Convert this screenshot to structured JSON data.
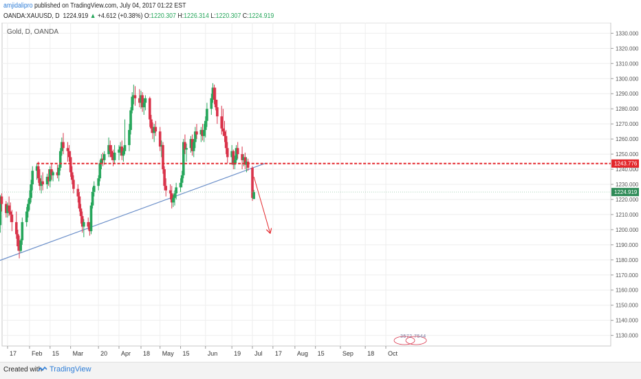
{
  "header": {
    "author": "amjidalipro",
    "published": "published on TradingView.com, July 04, 2017 01:22 EST",
    "symbol": "OANDA:XAUUSD, D",
    "last": "1224.919",
    "arrow": "▲",
    "change": "+4.612 (+0.38%)",
    "o_label": "O:",
    "o_value": "1220.307",
    "h_label": "H:",
    "h_value": "1226.314",
    "l_label": "L:",
    "l_value": "1220.307",
    "c_label": "C:",
    "c_value": "1224.919"
  },
  "footer": {
    "created": "Created with",
    "brand": "TradingView"
  },
  "colors": {
    "up": "#26a65b",
    "down": "#d9334a",
    "trendline": "#6b8fc9",
    "resistance": "#e3262b",
    "price_tag": "#2e8b57"
  },
  "chart_data": {
    "type": "candlestick",
    "title": "Gold, D, OANDA",
    "y_axis": {
      "range": [
        1123,
        1337
      ],
      "ticks": [
        "1130.000",
        "1140.000",
        "1150.000",
        "1160.000",
        "1170.000",
        "1180.000",
        "1190.000",
        "1200.000",
        "1210.000",
        "1220.000",
        "1230.000",
        "1240.000",
        "1250.000",
        "1260.000",
        "1270.000",
        "1280.000",
        "1290.000",
        "1300.000",
        "1310.000",
        "1320.000",
        "1330.000"
      ]
    },
    "x_axis": {
      "ticks": [
        {
          "label": "17",
          "date": "2017-01-17"
        },
        {
          "label": "Feb",
          "date": "2017-02-01"
        },
        {
          "label": "15",
          "date": "2017-02-15"
        },
        {
          "label": "Mar",
          "date": "2017-03-01"
        },
        {
          "label": "20",
          "date": "2017-03-20"
        },
        {
          "label": "Apr",
          "date": "2017-04-03"
        },
        {
          "label": "18",
          "date": "2017-04-18"
        },
        {
          "label": "May",
          "date": "2017-05-01"
        },
        {
          "label": "15",
          "date": "2017-05-15"
        },
        {
          "label": "Jun",
          "date": "2017-06-01"
        },
        {
          "label": "19",
          "date": "2017-06-19"
        },
        {
          "label": "Jul",
          "date": "2017-07-03"
        },
        {
          "label": "17",
          "date": "2017-07-17"
        },
        {
          "label": "Aug",
          "date": "2017-08-01"
        },
        {
          "label": "15",
          "date": "2017-08-15"
        },
        {
          "label": "Sep",
          "date": "2017-09-01"
        },
        {
          "label": "18",
          "date": "2017-09-18"
        },
        {
          "label": "Oct",
          "date": "2017-10-02"
        }
      ]
    },
    "grid": true,
    "price_labels": [
      {
        "value": 1243.776,
        "text": "1243.776"
      },
      {
        "value": 1224.919,
        "text": "1224.919"
      }
    ],
    "watermark": "3572 7544",
    "resistance_level": 1243.776,
    "trendline": {
      "start_date": "2017-01-10",
      "start_value": 1179,
      "end_date": "2017-07-12",
      "end_value": 1244
    },
    "projection_arrow": {
      "start_date": "2017-07-04",
      "start_value": 1235,
      "end_date": "2017-07-15",
      "end_value": 1198
    },
    "candles": [
      [
        "2017-01-10",
        1201,
        1210,
        1200,
        1209
      ],
      [
        "2017-01-11",
        1209,
        1220,
        1197,
        1203
      ],
      [
        "2017-01-12",
        1203,
        1223,
        1198,
        1222
      ],
      [
        "2017-01-13",
        1222,
        1224,
        1212,
        1217
      ],
      [
        "2017-01-16",
        1217,
        1219,
        1208,
        1211
      ],
      [
        "2017-01-17",
        1211,
        1218,
        1208,
        1216
      ],
      [
        "2017-01-18",
        1216,
        1222,
        1209,
        1212
      ],
      [
        "2017-01-19",
        1212,
        1218,
        1205,
        1210
      ],
      [
        "2017-01-20",
        1210,
        1213,
        1199,
        1205
      ],
      [
        "2017-01-23",
        1205,
        1212,
        1194,
        1197
      ],
      [
        "2017-01-24",
        1197,
        1200,
        1186,
        1189
      ],
      [
        "2017-01-25",
        1189,
        1196,
        1181,
        1186
      ],
      [
        "2017-01-26",
        1186,
        1194,
        1185,
        1193
      ],
      [
        "2017-01-27",
        1193,
        1208,
        1190,
        1205
      ],
      [
        "2017-01-30",
        1205,
        1215,
        1202,
        1212
      ],
      [
        "2017-01-31",
        1212,
        1220,
        1208,
        1217
      ],
      [
        "2017-02-01",
        1217,
        1226,
        1213,
        1221
      ],
      [
        "2017-02-02",
        1221,
        1233,
        1218,
        1230
      ],
      [
        "2017-02-03",
        1230,
        1242,
        1226,
        1239
      ],
      [
        "2017-02-06",
        1239,
        1244,
        1233,
        1242
      ],
      [
        "2017-02-07",
        1242,
        1245,
        1231,
        1234
      ],
      [
        "2017-02-08",
        1234,
        1240,
        1226,
        1229
      ],
      [
        "2017-02-09",
        1229,
        1236,
        1224,
        1232
      ],
      [
        "2017-02-10",
        1232,
        1238,
        1226,
        1230
      ],
      [
        "2017-02-13",
        1230,
        1237,
        1227,
        1235
      ],
      [
        "2017-02-14",
        1235,
        1240,
        1229,
        1232
      ],
      [
        "2017-02-15",
        1232,
        1242,
        1228,
        1240
      ],
      [
        "2017-02-16",
        1240,
        1244,
        1233,
        1236
      ],
      [
        "2017-02-17",
        1236,
        1239,
        1232,
        1238
      ],
      [
        "2017-02-20",
        1238,
        1243,
        1234,
        1236
      ],
      [
        "2017-02-21",
        1236,
        1243,
        1232,
        1241
      ],
      [
        "2017-02-22",
        1241,
        1254,
        1239,
        1252
      ],
      [
        "2017-02-23",
        1252,
        1261,
        1249,
        1258
      ],
      [
        "2017-02-24",
        1258,
        1264,
        1250,
        1254
      ],
      [
        "2017-02-27",
        1254,
        1258,
        1245,
        1252
      ],
      [
        "2017-02-28",
        1252,
        1256,
        1245,
        1248
      ],
      [
        "2017-03-01",
        1248,
        1252,
        1235,
        1238
      ],
      [
        "2017-03-02",
        1238,
        1242,
        1230,
        1233
      ],
      [
        "2017-03-03",
        1233,
        1236,
        1224,
        1227
      ],
      [
        "2017-03-06",
        1227,
        1230,
        1218,
        1222
      ],
      [
        "2017-03-07",
        1222,
        1225,
        1212,
        1214
      ],
      [
        "2017-03-08",
        1214,
        1217,
        1204,
        1209
      ],
      [
        "2017-03-09",
        1209,
        1212,
        1198,
        1202
      ],
      [
        "2017-03-10",
        1202,
        1207,
        1195,
        1205
      ],
      [
        "2017-03-13",
        1205,
        1208,
        1200,
        1202
      ],
      [
        "2017-03-14",
        1202,
        1205,
        1196,
        1199
      ],
      [
        "2017-03-15",
        1199,
        1218,
        1197,
        1216
      ],
      [
        "2017-03-16",
        1216,
        1228,
        1214,
        1225
      ],
      [
        "2017-03-17",
        1225,
        1232,
        1222,
        1229
      ],
      [
        "2017-03-20",
        1229,
        1236,
        1226,
        1234
      ],
      [
        "2017-03-21",
        1234,
        1246,
        1232,
        1244
      ],
      [
        "2017-03-22",
        1244,
        1250,
        1240,
        1247
      ],
      [
        "2017-03-23",
        1247,
        1251,
        1242,
        1246
      ],
      [
        "2017-03-24",
        1246,
        1252,
        1243,
        1250
      ],
      [
        "2017-03-27",
        1250,
        1261,
        1248,
        1256
      ],
      [
        "2017-03-28",
        1256,
        1259,
        1248,
        1252
      ],
      [
        "2017-03-29",
        1252,
        1256,
        1246,
        1248
      ],
      [
        "2017-03-30",
        1248,
        1253,
        1242,
        1246
      ],
      [
        "2017-03-31",
        1246,
        1256,
        1244,
        1251
      ],
      [
        "2017-04-03",
        1251,
        1256,
        1246,
        1253
      ],
      [
        "2017-04-04",
        1253,
        1258,
        1249,
        1255
      ],
      [
        "2017-04-05",
        1255,
        1259,
        1246,
        1249
      ],
      [
        "2017-04-06",
        1249,
        1254,
        1245,
        1252
      ],
      [
        "2017-04-07",
        1252,
        1273,
        1250,
        1256
      ],
      [
        "2017-04-10",
        1256,
        1270,
        1252,
        1266
      ],
      [
        "2017-04-11",
        1266,
        1281,
        1263,
        1279
      ],
      [
        "2017-04-12",
        1279,
        1291,
        1277,
        1288
      ],
      [
        "2017-04-13",
        1288,
        1296,
        1283,
        1289
      ],
      [
        "2017-04-14",
        1289,
        1295,
        1282,
        1287
      ],
      [
        "2017-04-17",
        1287,
        1293,
        1281,
        1284
      ],
      [
        "2017-04-18",
        1284,
        1292,
        1280,
        1289
      ],
      [
        "2017-04-19",
        1289,
        1291,
        1278,
        1281
      ],
      [
        "2017-04-20",
        1281,
        1287,
        1276,
        1284
      ],
      [
        "2017-04-21",
        1284,
        1289,
        1279,
        1287
      ],
      [
        "2017-04-24",
        1287,
        1288,
        1268,
        1273
      ],
      [
        "2017-04-25",
        1273,
        1276,
        1264,
        1267
      ],
      [
        "2017-04-26",
        1267,
        1271,
        1260,
        1264
      ],
      [
        "2017-04-27",
        1264,
        1270,
        1258,
        1268
      ],
      [
        "2017-04-28",
        1268,
        1272,
        1262,
        1265
      ],
      [
        "2017-05-01",
        1265,
        1268,
        1252,
        1255
      ],
      [
        "2017-05-02",
        1255,
        1259,
        1248,
        1256
      ],
      [
        "2017-05-03",
        1256,
        1258,
        1237,
        1240
      ],
      [
        "2017-05-04",
        1240,
        1242,
        1226,
        1229
      ],
      [
        "2017-05-05",
        1229,
        1234,
        1222,
        1226
      ],
      [
        "2017-05-08",
        1226,
        1230,
        1220,
        1224
      ],
      [
        "2017-05-09",
        1224,
        1229,
        1214,
        1218
      ],
      [
        "2017-05-10",
        1218,
        1223,
        1215,
        1221
      ],
      [
        "2017-05-11",
        1221,
        1226,
        1216,
        1224
      ],
      [
        "2017-05-12",
        1224,
        1231,
        1220,
        1228
      ],
      [
        "2017-05-15",
        1228,
        1234,
        1225,
        1231
      ],
      [
        "2017-05-16",
        1231,
        1239,
        1228,
        1236
      ],
      [
        "2017-05-17",
        1236,
        1260,
        1234,
        1258
      ],
      [
        "2017-05-18",
        1258,
        1263,
        1250,
        1253
      ],
      [
        "2017-05-19",
        1253,
        1257,
        1245,
        1254
      ],
      [
        "2017-05-22",
        1254,
        1262,
        1251,
        1260
      ],
      [
        "2017-05-23",
        1260,
        1263,
        1249,
        1252
      ],
      [
        "2017-05-24",
        1252,
        1260,
        1248,
        1258
      ],
      [
        "2017-05-25",
        1258,
        1268,
        1254,
        1265
      ],
      [
        "2017-05-26",
        1265,
        1270,
        1260,
        1263
      ],
      [
        "2017-05-29",
        1263,
        1268,
        1258,
        1266
      ],
      [
        "2017-05-30",
        1266,
        1270,
        1259,
        1262
      ],
      [
        "2017-05-31",
        1262,
        1270,
        1258,
        1266
      ],
      [
        "2017-06-01",
        1266,
        1275,
        1261,
        1272
      ],
      [
        "2017-06-02",
        1272,
        1284,
        1268,
        1280
      ],
      [
        "2017-06-05",
        1280,
        1290,
        1276,
        1287
      ],
      [
        "2017-06-06",
        1287,
        1297,
        1284,
        1294
      ],
      [
        "2017-06-07",
        1294,
        1296,
        1283,
        1286
      ],
      [
        "2017-06-08",
        1286,
        1294,
        1279,
        1281
      ],
      [
        "2017-06-09",
        1281,
        1286,
        1270,
        1275
      ],
      [
        "2017-06-12",
        1275,
        1282,
        1263,
        1267
      ],
      [
        "2017-06-13",
        1267,
        1280,
        1262,
        1265
      ],
      [
        "2017-06-14",
        1265,
        1272,
        1258,
        1262
      ],
      [
        "2017-06-15",
        1262,
        1266,
        1250,
        1254
      ],
      [
        "2017-06-16",
        1254,
        1258,
        1244,
        1248
      ],
      [
        "2017-06-19",
        1248,
        1256,
        1243,
        1252
      ],
      [
        "2017-06-20",
        1252,
        1253,
        1240,
        1243
      ],
      [
        "2017-06-21",
        1243,
        1249,
        1240,
        1246
      ],
      [
        "2017-06-22",
        1246,
        1256,
        1244,
        1254
      ],
      [
        "2017-06-23",
        1254,
        1258,
        1247,
        1250
      ],
      [
        "2017-06-26",
        1250,
        1255,
        1240,
        1246
      ],
      [
        "2017-06-27",
        1246,
        1250,
        1242,
        1248
      ],
      [
        "2017-06-28",
        1248,
        1251,
        1240,
        1243
      ],
      [
        "2017-06-29",
        1243,
        1248,
        1238,
        1245
      ],
      [
        "2017-06-30",
        1245,
        1247,
        1239,
        1241
      ],
      [
        "2017-07-03",
        1241,
        1242,
        1219,
        1221
      ],
      [
        "2017-07-04",
        1220.307,
        1226.314,
        1220.307,
        1224.919
      ]
    ]
  }
}
